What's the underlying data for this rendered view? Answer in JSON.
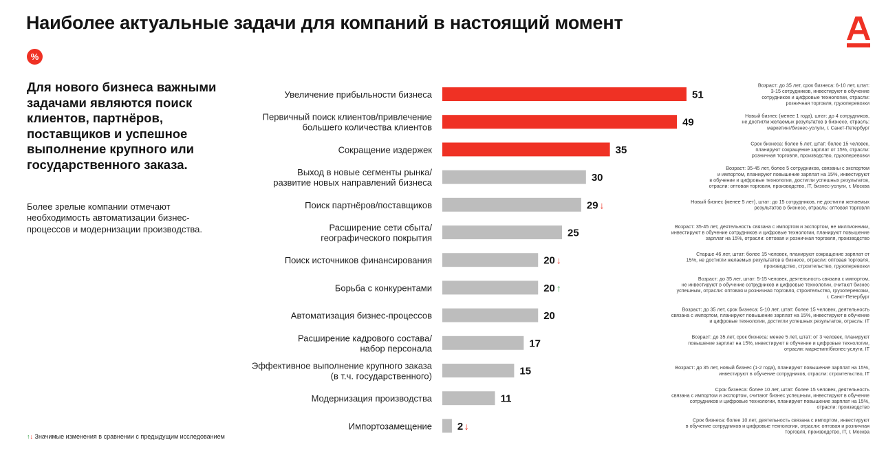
{
  "header": {
    "title": "Наиболее актуальные задачи для компаний в настоящий момент"
  },
  "brand": {
    "logo_icon": "alfa-logo-icon",
    "accent": "#ef3124"
  },
  "badge": {
    "label": "%"
  },
  "left": {
    "lead": "Для нового бизнеса важными задачами являются поиск клиентов, партнёров, поставщиков и успешное выполнение крупного или государственного заказа.",
    "sub": "Более зрелые компании отмечают необходимость автоматизации бизнес-процессов и модернизации производства."
  },
  "footnote": {
    "up": "↑",
    "down": "↓",
    "text": "Значимые изменения в сравнении с предыдущим исследованием"
  },
  "colors": {
    "red": "#ef3124",
    "gray": "#bdbdbd",
    "up": "#2a9d3a",
    "down": "#ef3124"
  },
  "chart_data": {
    "type": "bar",
    "orientation": "horizontal",
    "title": "Наиболее актуальные задачи для компаний в настоящий момент",
    "xlim": [
      0,
      51
    ],
    "categories": [
      [
        "Увеличение прибыльности бизнеса"
      ],
      [
        "Первичный поиск клиентов/привлечение",
        "большего количества клиентов"
      ],
      [
        "Сокращение издержек"
      ],
      [
        "Выход в новые сегменты рынка/",
        "развитие новых направлений бизнеса"
      ],
      [
        "Поиск партнёров/поставщиков"
      ],
      [
        "Расширение сети сбыта/",
        "географического покрытия"
      ],
      [
        "Поиск источников финансирования"
      ],
      [
        "Борьба с конкурентами"
      ],
      [
        "Автоматизация бизнес-процессов"
      ],
      [
        "Расширение кадрового состава/",
        "набор персонала"
      ],
      [
        "Эффективное выполнение крупного заказа",
        "(в т.ч. государственного)"
      ],
      [
        "Модернизация производства"
      ],
      [
        "Импортозамещение"
      ]
    ],
    "values": [
      51,
      49,
      35,
      30,
      29,
      25,
      20,
      20,
      20,
      17,
      15,
      11,
      2
    ],
    "highlight": [
      true,
      true,
      true,
      false,
      false,
      false,
      false,
      false,
      false,
      false,
      false,
      false,
      false
    ],
    "change": [
      "",
      "",
      "",
      "",
      "down",
      "",
      "down",
      "up",
      "",
      "",
      "",
      "",
      "down"
    ],
    "notes": [
      [
        "Возраст: до 35 лет, срок бизнеса: 6-10 лет, штат:",
        "3-15 сотрудников, инвестируют в обучение",
        "сотрудников и цифровые технологии, отрасли:",
        "розничная торговля, грузоперевозки"
      ],
      [
        "Новый бизнес (менее 1 года), штат: до 4 сотрудников,",
        "не достигли желаемых результатов в бизнесе, отрасль:",
        "маркетинг/бизнес-услуги, г. Санкт-Петербург"
      ],
      [
        "Срок бизнеса: более 5 лет, штат: более 15 человек,",
        "планируют сокращение зарплат от 15%, отрасли:",
        "розничная торговля, производство, грузоперевозки"
      ],
      [
        "Возраст: 35-45 лет, более 5 сотрудников, связаны с экспортом",
        "и импортом, планируют повышение зарплат на 15%, инвестируют",
        "в обучение и цифровые технологии, достигли успешных результатов,",
        "отрасли: оптовая торговля, производство, IT, бизнес-услуги, г. Москва"
      ],
      [
        "Новый бизнес (менее 5 лет), штат: до 15 сотрудников, не достигли желаемых",
        "результатов в бизнесе, отрасль: оптовая торговля"
      ],
      [
        "Возраст: 35-45 лет, деятельность связана с импортом и экспортом, не миллионники,",
        "инвестируют в обучение сотрудников и цифровые технологии, планируют повышение",
        "зарплат на 15%, отрасли: оптовая и розничная торговля, производство"
      ],
      [
        "Старше 46 лет, штат: более 15 человек, планируют сокращение зарплат от",
        "15%, не достигли желаемых результатов в бизнесе, отрасли: оптовая торговля,",
        "производство, строительство, грузоперевозки"
      ],
      [
        "Возраст: до 35 лет, штат: 5-15 человек, деятельность связана с импортом,",
        "не инвестируют в обучение сотрудников и цифровые технологии, считают бизнес",
        "успешным, отрасли: оптовая и розничная торговля, строительство, грузоперевозки,",
        "г. Санкт-Петербург"
      ],
      [
        "Возраст: до 35 лет, срок бизнеса: 5-10 лет, штат: более 15 человек, деятельность",
        "связана с импортом, планируют повышение зарплат на 15%, инвестируют в обучение",
        "и цифровые технологии, достигли успешных результатов, отрасль: IT"
      ],
      [
        "Возраст: до 35 лет, срок бизнеса: менее 5 лет, штат: от 3 человек, планируют",
        "повышение зарплат на 15%, инвестируют в обучение и цифровые технологии,",
        "отрасли: маркетинг/бизнес-услуги, IT"
      ],
      [
        "Возраст: до 35 лет, новый бизнес (1-2 года), планируют повышение зарплат на 15%,",
        "инвестируют в обучение сотрудников, отрасли: строительство, IT"
      ],
      [
        "Срок бизнеса: более 10 лет, штат: более 15 человек, деятельность",
        "связана с импортом и экспортом, считают бизнес успешным, инвестируют в обучение",
        "сотрудников и цифровые технологии, планируют повышение зарплат на 15%,",
        "отрасли: производство"
      ],
      [
        "Срок бизнеса: более 10 лет, деятельность связана с импортом, инвестируют",
        "в обучение сотрудников и цифровые технологии, отрасли: оптовая и розничная",
        "торговля, производство, IT, г. Москва"
      ]
    ]
  }
}
